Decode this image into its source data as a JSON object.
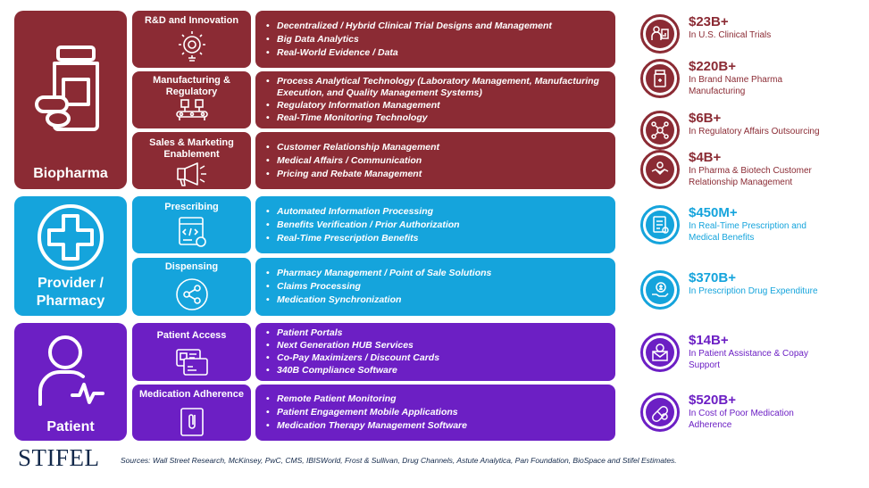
{
  "segments": {
    "biopharma": {
      "label": "Biopharma"
    },
    "provider": {
      "label": "Provider / Pharmacy"
    },
    "patient": {
      "label": "Patient"
    }
  },
  "rows": [
    {
      "title": "R&D and Innovation",
      "icon": "lightbulb-gear-icon",
      "bullets": [
        "Decentralized / Hybrid Clinical Trial Designs and Management",
        "Big Data Analytics",
        "Real-World Evidence / Data"
      ]
    },
    {
      "title": "Manufacturing & Regulatory",
      "icon": "assembly-line-icon",
      "bullets": [
        "Process Analytical Technology (Laboratory Management, Manufacturing Execution, and Quality Management Systems)",
        "Regulatory Information Management",
        "Real-Time Monitoring Technology"
      ]
    },
    {
      "title": "Sales & Marketing Enablement",
      "icon": "megaphone-icon",
      "bullets": [
        "Customer Relationship Management",
        "Medical Affairs / Communication",
        "Pricing and Rebate Management"
      ]
    },
    {
      "title": "Prescribing",
      "icon": "prescription-code-icon",
      "bullets": [
        "Automated Information Processing",
        "Benefits Verification / Prior Authorization",
        "Real-Time Prescription Benefits"
      ]
    },
    {
      "title": "Dispensing",
      "icon": "share-network-icon",
      "bullets": [
        "Pharmacy Management / Point of Sale Solutions",
        "Claims Processing",
        "Medication Synchronization"
      ]
    },
    {
      "title": "Patient Access",
      "icon": "id-cards-icon",
      "bullets": [
        "Patient Portals",
        "Next Generation HUB Services",
        "Co-Pay Maximizers / Discount Cards",
        "340B Compliance Software"
      ]
    },
    {
      "title": "Medication Adherence",
      "icon": "paperclip-icon",
      "bullets": [
        "Remote Patient Monitoring",
        "Patient Engagement Mobile Applications",
        "Medication Therapy Management Software"
      ]
    }
  ],
  "stats": [
    {
      "value": "$23B+",
      "desc": "In U.S. Clinical Trials",
      "icon": "clinical-trial-icon",
      "color": "#8b2b34"
    },
    {
      "value": "$220B+",
      "desc": "In Brand Name Pharma Manufacturing",
      "icon": "pill-bottle-icon",
      "color": "#8b2b34"
    },
    {
      "value": "$6B+",
      "desc": "In Regulatory Affairs Outsourcing",
      "icon": "network-icon",
      "color": "#8b2b34"
    },
    {
      "value": "$4B+",
      "desc": "In Pharma & Biotech Customer Relationship Management",
      "icon": "handshake-icon",
      "color": "#8b2b34"
    },
    {
      "value": "$450M+",
      "desc": "In Real-Time Prescription and Medical Benefits",
      "icon": "prescription-pad-icon",
      "color": "#15a4dc"
    },
    {
      "value": "$370B+",
      "desc": "In Prescription Drug Expenditure",
      "icon": "money-hand-icon",
      "color": "#15a4dc"
    },
    {
      "value": "$14B+",
      "desc": "In Patient Assistance & Copay Support",
      "icon": "assistance-envelope-icon",
      "color": "#6c1fc4"
    },
    {
      "value": "$520B+",
      "desc": "In Cost of Poor Medication Adherence",
      "icon": "capsule-icon",
      "color": "#6c1fc4"
    }
  ],
  "logo": "STIFEL",
  "sources": "Sources: Wall Street Research, McKinsey, PwC, CMS, IBISWorld, Frost & Sullivan, Drug Channels, Astute Analytica, Pan Foundation, BioSpace and Stifel Estimates."
}
